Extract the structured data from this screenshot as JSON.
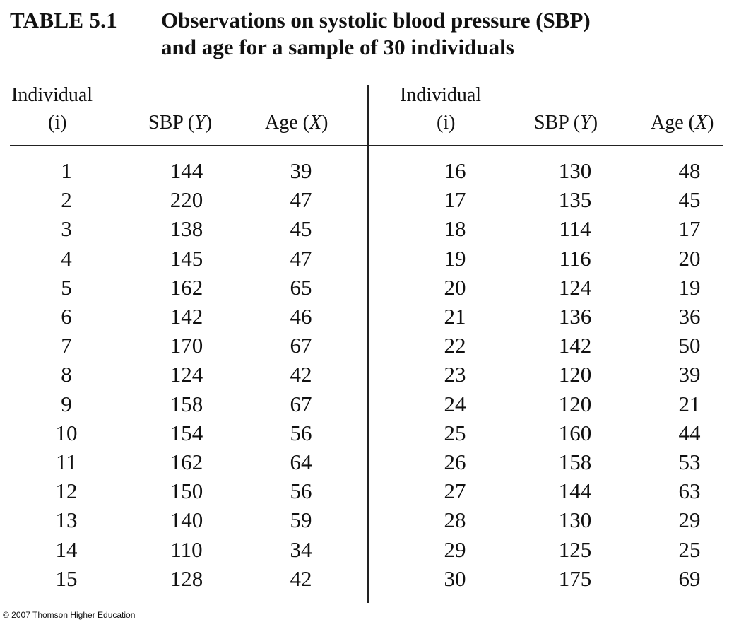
{
  "caption": {
    "number": "TABLE 5.1",
    "title_line1": "Observations on systolic blood pressure (SBP)",
    "title_line2": "and age for a sample of 30 individuals"
  },
  "headers": {
    "individual": "Individual",
    "individual_var": "(i)",
    "sbp": "SBP (",
    "sbp_var": "Y",
    "age": "Age (",
    "age_var": "X",
    "close_paren": ")"
  },
  "rows": [
    {
      "i": "1",
      "sbp": "144",
      "age": "39"
    },
    {
      "i": "2",
      "sbp": "220",
      "age": "47"
    },
    {
      "i": "3",
      "sbp": "138",
      "age": "45"
    },
    {
      "i": "4",
      "sbp": "145",
      "age": "47"
    },
    {
      "i": "5",
      "sbp": "162",
      "age": "65"
    },
    {
      "i": "6",
      "sbp": "142",
      "age": "46"
    },
    {
      "i": "7",
      "sbp": "170",
      "age": "67"
    },
    {
      "i": "8",
      "sbp": "124",
      "age": "42"
    },
    {
      "i": "9",
      "sbp": "158",
      "age": "67"
    },
    {
      "i": "10",
      "sbp": "154",
      "age": "56"
    },
    {
      "i": "11",
      "sbp": "162",
      "age": "64"
    },
    {
      "i": "12",
      "sbp": "150",
      "age": "56"
    },
    {
      "i": "13",
      "sbp": "140",
      "age": "59"
    },
    {
      "i": "14",
      "sbp": "110",
      "age": "34"
    },
    {
      "i": "15",
      "sbp": "128",
      "age": "42"
    },
    {
      "i": "16",
      "sbp": "130",
      "age": "48"
    },
    {
      "i": "17",
      "sbp": "135",
      "age": "45"
    },
    {
      "i": "18",
      "sbp": "114",
      "age": "17"
    },
    {
      "i": "19",
      "sbp": "116",
      "age": "20"
    },
    {
      "i": "20",
      "sbp": "124",
      "age": "19"
    },
    {
      "i": "21",
      "sbp": "136",
      "age": "36"
    },
    {
      "i": "22",
      "sbp": "142",
      "age": "50"
    },
    {
      "i": "23",
      "sbp": "120",
      "age": "39"
    },
    {
      "i": "24",
      "sbp": "120",
      "age": "21"
    },
    {
      "i": "25",
      "sbp": "160",
      "age": "44"
    },
    {
      "i": "26",
      "sbp": "158",
      "age": "53"
    },
    {
      "i": "27",
      "sbp": "144",
      "age": "63"
    },
    {
      "i": "28",
      "sbp": "130",
      "age": "29"
    },
    {
      "i": "29",
      "sbp": "125",
      "age": "25"
    },
    {
      "i": "30",
      "sbp": "175",
      "age": "69"
    }
  ],
  "footer": {
    "copyright": "© 2007 Thomson Higher Education"
  }
}
